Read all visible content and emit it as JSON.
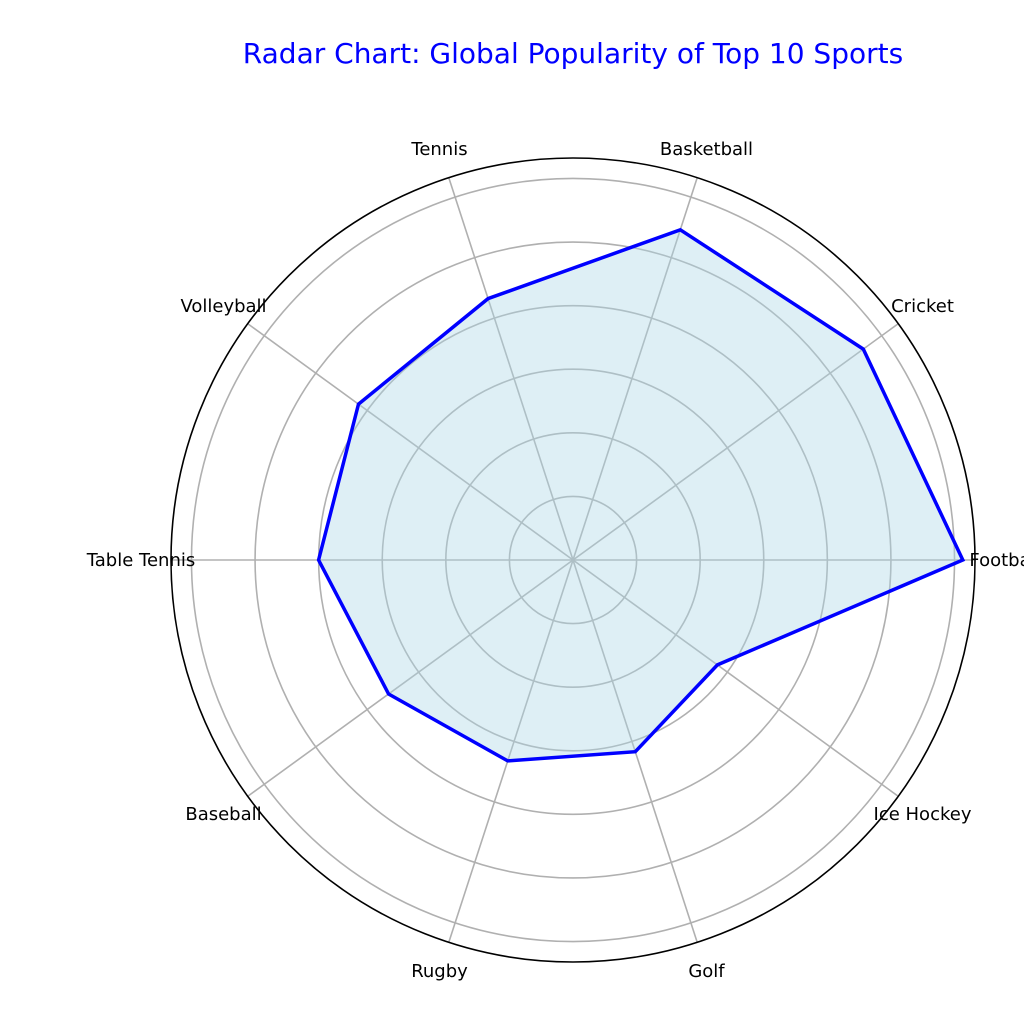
{
  "chart_data": {
    "type": "radar",
    "title": "Radar Chart: Global Popularity of Top 10 Sports",
    "categories": [
      "Football",
      "Cricket",
      "Basketball",
      "Tennis",
      "Volleyball",
      "Table Tennis",
      "Baseball",
      "Rugby",
      "Golf",
      "Ice Hockey"
    ],
    "series": [
      {
        "values": [
          3.5,
          2.5,
          2.2,
          1.0,
          0.9,
          0.8,
          0.6,
          0.5,
          0.45,
          0.35
        ],
        "line_color": "#0000ff",
        "fill_color": "#add8e6"
      }
    ],
    "r_scale": "log",
    "rlim": [
      0.05,
      4.0
    ],
    "grid": true,
    "gridlines_r": [
      0.1,
      0.2,
      0.4,
      0.8,
      1.6,
      3.2
    ]
  }
}
